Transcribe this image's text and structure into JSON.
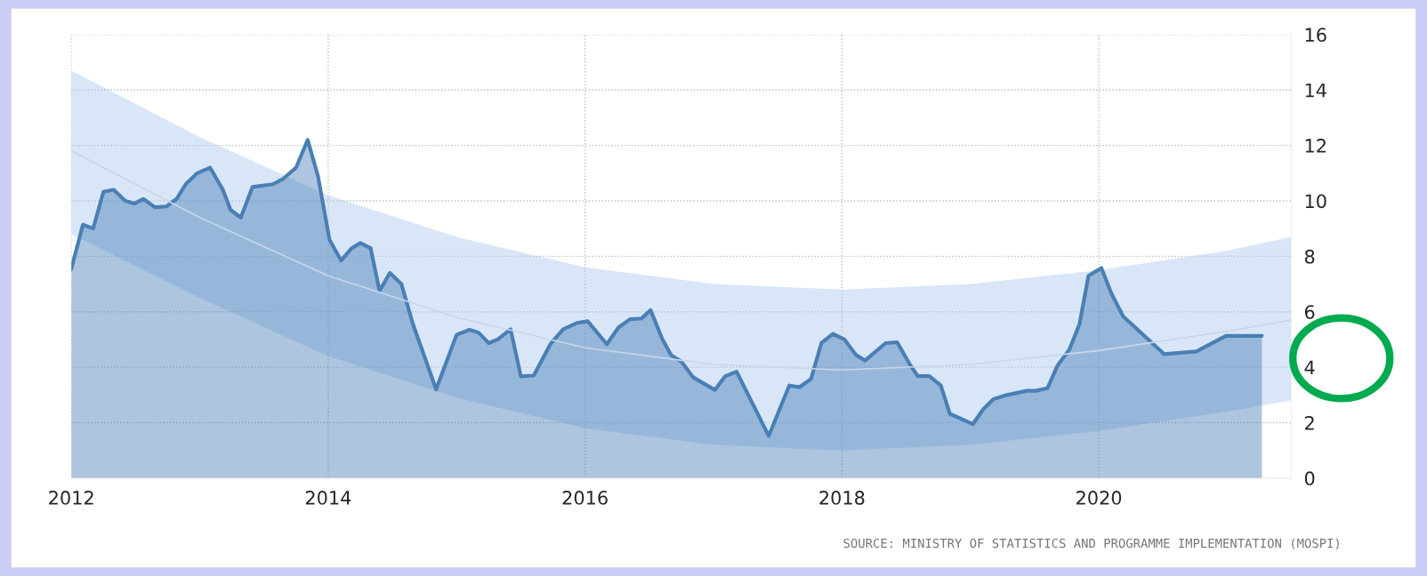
{
  "chart_data": {
    "type": "area",
    "annotations": [
      "SOURCE: MINISTRY OF STATISTICS AND PROGRAMME IMPLEMENTATION (MOSPI)"
    ],
    "series": [
      {
        "color": "#4a7fb5",
        "x": [
          2012.0,
          2012.09,
          2012.17,
          2012.25,
          2012.33,
          2012.42,
          2012.49,
          2012.56,
          2012.65,
          2012.74,
          2012.82,
          2012.89,
          2012.98,
          2013.08,
          2013.18,
          2013.24,
          2013.32,
          2013.41,
          2013.57,
          2013.65,
          2013.75,
          2013.84,
          2013.92,
          2014.01,
          2014.1,
          2014.18,
          2014.25,
          2014.33,
          2014.4,
          2014.48,
          2014.57,
          2014.66,
          2014.84,
          2015.0,
          2015.1,
          2015.17,
          2015.25,
          2015.32,
          2015.42,
          2015.5,
          2015.6,
          2015.73,
          2015.83,
          2015.94,
          2016.02,
          2016.17,
          2016.26,
          2016.35,
          2016.44,
          2016.51,
          2016.6,
          2016.67,
          2016.75,
          2016.84,
          2017.01,
          2017.09,
          2017.18,
          2017.43,
          2017.59,
          2017.67,
          2017.76,
          2017.84,
          2017.93,
          2018.02,
          2018.11,
          2018.18,
          2018.34,
          2018.43,
          2018.52,
          2018.59,
          2018.68,
          2018.77,
          2018.84,
          2019.02,
          2019.1,
          2019.18,
          2019.27,
          2019.44,
          2019.51,
          2019.6,
          2019.68,
          2019.77,
          2019.85,
          2019.92,
          2020.02,
          2020.1,
          2020.19,
          2020.51,
          2020.76,
          2020.99,
          2021.27
        ],
        "values": [
          7.55,
          9.14,
          9.0,
          10.33,
          10.4,
          10.0,
          9.9,
          10.07,
          9.77,
          9.8,
          10.07,
          10.6,
          11.0,
          11.2,
          10.4,
          9.67,
          9.4,
          10.5,
          10.6,
          10.8,
          11.2,
          12.2,
          10.9,
          8.6,
          7.85,
          8.28,
          8.48,
          8.3,
          6.75,
          7.4,
          7.0,
          5.55,
          3.2,
          5.17,
          5.35,
          5.25,
          4.87,
          5.0,
          5.37,
          3.67,
          3.7,
          4.83,
          5.37,
          5.6,
          5.66,
          4.83,
          5.43,
          5.73,
          5.76,
          6.06,
          5.03,
          4.44,
          4.2,
          3.64,
          3.18,
          3.67,
          3.84,
          1.52,
          3.34,
          3.28,
          3.58,
          4.87,
          5.2,
          5.0,
          4.44,
          4.24,
          4.87,
          4.9,
          4.17,
          3.68,
          3.68,
          3.34,
          2.32,
          1.95,
          2.48,
          2.85,
          2.98,
          3.15,
          3.15,
          3.24,
          4.07,
          4.63,
          5.56,
          7.3,
          7.58,
          6.64,
          5.83,
          4.47,
          4.57,
          5.13,
          5.13
        ]
      },
      {
        "type": "line",
        "color": "#c8d6ea",
        "x": [
          2012,
          2013,
          2014,
          2015,
          2016,
          2017,
          2018,
          2019,
          2020,
          2021,
          2021.5
        ],
        "values": [
          11.8,
          9.4,
          7.3,
          5.8,
          4.7,
          4.1,
          3.9,
          4.1,
          4.6,
          5.3,
          5.7
        ],
        "lower": [
          8.8,
          6.5,
          4.4,
          2.9,
          1.8,
          1.2,
          1.0,
          1.2,
          1.7,
          2.4,
          2.8
        ],
        "upper": [
          14.7,
          12.3,
          10.2,
          8.7,
          7.6,
          7.0,
          6.8,
          7.0,
          7.5,
          8.2,
          8.7
        ]
      }
    ],
    "xlim": [
      2012,
      2021.5
    ],
    "ylim": [
      0,
      16
    ],
    "xticks": [
      2012,
      2014,
      2016,
      2018,
      2020
    ],
    "yticks": [
      0,
      2,
      4,
      6,
      8,
      10,
      12,
      14,
      16
    ],
    "grid": true
  }
}
